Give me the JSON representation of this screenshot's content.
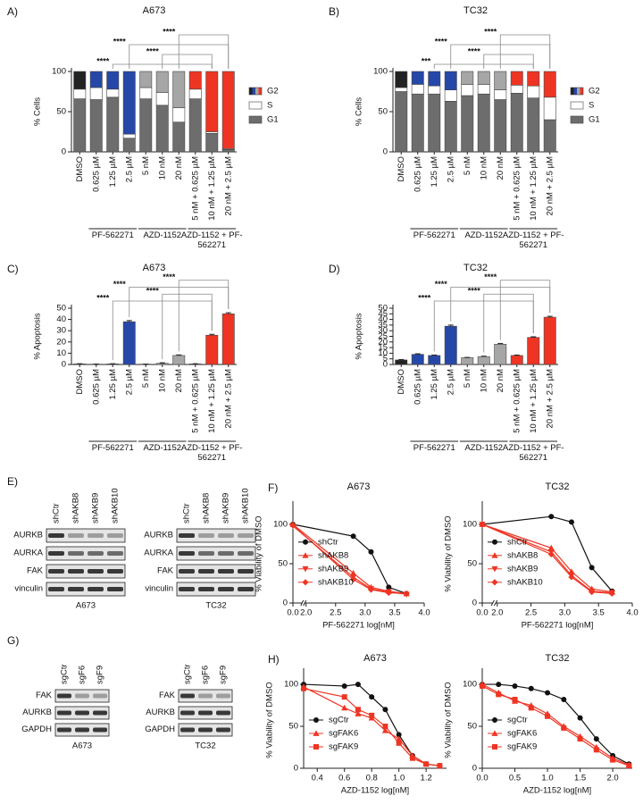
{
  "chart_data": [
    {
      "type": "bar",
      "label": "A)",
      "title": "A673",
      "ylabel": "% Cells",
      "stacked": true,
      "categories": [
        "DMSO",
        "0.625 µM",
        "1.25 µM",
        "2.5 µM",
        "5 nM",
        "10 nM",
        "20 nM",
        "5 nM + 0.625 µM",
        "10 nM + 1.25 µM",
        "20 nM + 2.5 µM"
      ],
      "series": [
        {
          "name": "G1",
          "color": "#6d6d6d",
          "values": [
            66,
            65,
            68,
            17,
            66,
            58,
            37,
            66,
            23,
            3
          ]
        },
        {
          "name": "S",
          "color": "#ffffff",
          "values": [
            12,
            15,
            10,
            5,
            14,
            16,
            18,
            12,
            2,
            1
          ]
        },
        {
          "name": "G2",
          "colors": [
            "#222222",
            "#2548a8",
            "#2548a8",
            "#2548a8",
            "#a6a6a6",
            "#a6a6a6",
            "#a6a6a6",
            "#ee3524",
            "#ee3524",
            "#ee3524"
          ],
          "values": [
            22,
            20,
            22,
            78,
            20,
            26,
            45,
            22,
            75,
            96
          ]
        }
      ],
      "ylim": [
        0,
        100
      ],
      "yticks": [
        0,
        50,
        100
      ],
      "legend": "right",
      "groups": [
        {
          "name": "PF-562271",
          "categories": [
            "0.625 µM",
            "1.25 µM",
            "2.5 µM"
          ]
        },
        {
          "name": "AZD-1152",
          "categories": [
            "5 nM",
            "10 nM",
            "20 nM"
          ]
        },
        {
          "name": "AZD-1152 + PF-562271",
          "categories": [
            "5 nM + 0.625 µM",
            "10 nM + 1.25 µM",
            "20 nM + 2.5 µM"
          ]
        }
      ],
      "annotations": [
        {
          "text": "****",
          "from": "1.25 µM",
          "to": "10 nM + 1.25 µM"
        },
        {
          "text": "****",
          "from": "10 nM",
          "to": "10 nM + 1.25 µM"
        },
        {
          "text": "****",
          "from": "2.5 µM",
          "to": "20 nM + 2.5 µM"
        },
        {
          "text": "****",
          "from": "20 nM",
          "to": "20 nM + 2.5 µM"
        }
      ]
    },
    {
      "type": "bar",
      "label": "B)",
      "title": "TC32",
      "ylabel": "% Cells",
      "stacked": true,
      "categories": [
        "DMSO",
        "0.625 µM",
        "1.25 µM",
        "2.5 µM",
        "5 nM",
        "10 nM",
        "20 nM",
        "5 nM + 0.625 µM",
        "10 nM + 1.25 µM",
        "20 nM + 2.5 µM"
      ],
      "series": [
        {
          "name": "G1",
          "color": "#6d6d6d",
          "values": [
            75,
            72,
            72,
            63,
            70,
            72,
            65,
            73,
            67,
            40
          ]
        },
        {
          "name": "S",
          "color": "#ffffff",
          "values": [
            5,
            12,
            10,
            14,
            14,
            12,
            12,
            10,
            15,
            28
          ]
        },
        {
          "name": "G2",
          "colors": [
            "#222222",
            "#2548a8",
            "#2548a8",
            "#2548a8",
            "#a6a6a6",
            "#a6a6a6",
            "#a6a6a6",
            "#ee3524",
            "#ee3524",
            "#ee3524"
          ],
          "values": [
            20,
            16,
            18,
            23,
            16,
            16,
            23,
            17,
            18,
            32
          ]
        }
      ],
      "ylim": [
        0,
        100
      ],
      "yticks": [
        0,
        50,
        100
      ],
      "legend": "right",
      "groups": [
        {
          "name": "PF-562271",
          "categories": [
            "0.625 µM",
            "1.25 µM",
            "2.5 µM"
          ]
        },
        {
          "name": "AZD-1152",
          "categories": [
            "5 nM",
            "10 nM",
            "20 nM"
          ]
        },
        {
          "name": "AZD-1152 + PF-562271",
          "categories": [
            "5 nM + 0.625 µM",
            "10 nM + 1.25 µM",
            "20 nM + 2.5 µM"
          ]
        }
      ],
      "annotations": [
        {
          "text": "***",
          "from": "1.25 µM",
          "to": "10 nM + 1.25 µM"
        },
        {
          "text": "****",
          "from": "10 nM",
          "to": "10 nM + 1.25 µM"
        },
        {
          "text": "****",
          "from": "2.5 µM",
          "to": "20 nM + 2.5 µM"
        },
        {
          "text": "****",
          "from": "20 nM",
          "to": "20 nM + 2.5 µM"
        }
      ]
    },
    {
      "type": "bar",
      "label": "C)",
      "title": "A673",
      "ylabel": "% Apoptosis",
      "categories": [
        "DMSO",
        "0.625 µM",
        "1.25 µM",
        "2.5 µM",
        "5 nM",
        "10 nM",
        "20 nM",
        "5 nM + 0.625 µM",
        "10 nM + 1.25 µM",
        "20 nM + 2.5 µM"
      ],
      "values": [
        0.5,
        0.3,
        0.5,
        38,
        0.3,
        1,
        8,
        0.5,
        26,
        45
      ],
      "errors": [
        0.2,
        0.1,
        0.2,
        1,
        0.1,
        0.5,
        0.5,
        0.2,
        0.8,
        1
      ],
      "colors": [
        "#222222",
        "#2548a8",
        "#2548a8",
        "#2548a8",
        "#a6a6a6",
        "#a6a6a6",
        "#a6a6a6",
        "#ee3524",
        "#ee3524",
        "#ee3524"
      ],
      "ylim": [
        0,
        50
      ],
      "yticks": [
        0,
        10,
        20,
        30,
        40,
        50
      ],
      "groups": [
        {
          "name": "PF-562271",
          "categories": [
            "0.625 µM",
            "1.25 µM",
            "2.5 µM"
          ]
        },
        {
          "name": "AZD-1152",
          "categories": [
            "5 nM",
            "10 nM",
            "20 nM"
          ]
        },
        {
          "name": "AZD-1152 + PF-562271",
          "categories": [
            "5 nM + 0.625 µM",
            "10 nM + 1.25 µM",
            "20 nM + 2.5 µM"
          ]
        }
      ],
      "annotations": [
        {
          "text": "****",
          "from": "1.25 µM",
          "to": "10 nM + 1.25 µM"
        },
        {
          "text": "****",
          "from": "10 nM",
          "to": "10 nM + 1.25 µM"
        },
        {
          "text": "****",
          "from": "2.5 µM",
          "to": "20 nM + 2.5 µM"
        },
        {
          "text": "****",
          "from": "20 nM",
          "to": "20 nM + 2.5 µM"
        }
      ]
    },
    {
      "type": "bar",
      "label": "D)",
      "title": "TC32",
      "ylabel": "% Apoptosis",
      "categories": [
        "DMSO",
        "0.625 µM",
        "1.25 µM",
        "2.5 µM",
        "5 nM",
        "10 nM",
        "20 nM",
        "5 nM + 0.625 µM",
        "10 nM + 1.25 µM",
        "20 nM + 2.5 µM"
      ],
      "values": [
        4,
        9,
        8,
        34,
        6,
        7,
        18,
        8,
        24,
        42
      ],
      "errors": [
        0.4,
        0.5,
        0.4,
        1,
        0.3,
        0.4,
        0.7,
        0.4,
        0.6,
        0.8
      ],
      "colors": [
        "#222222",
        "#2548a8",
        "#2548a8",
        "#2548a8",
        "#a6a6a6",
        "#a6a6a6",
        "#a6a6a6",
        "#ee3524",
        "#ee3524",
        "#ee3524"
      ],
      "ylim": [
        0,
        50
      ],
      "yticks": [
        0,
        5,
        10,
        15,
        20,
        25,
        30,
        35,
        40,
        45,
        50
      ],
      "groups": [
        {
          "name": "PF-562271",
          "categories": [
            "0.625 µM",
            "1.25 µM",
            "2.5 µM"
          ]
        },
        {
          "name": "AZD-1152",
          "categories": [
            "5 nM",
            "10 nM",
            "20 nM"
          ]
        },
        {
          "name": "AZD-1152 + PF-562271",
          "categories": [
            "5 nM + 0.625 µM",
            "10 nM + 1.25 µM",
            "20 nM + 2.5 µM"
          ]
        }
      ],
      "annotations": [
        {
          "text": "****",
          "from": "1.25 µM",
          "to": "10 nM + 1.25 µM"
        },
        {
          "text": "****",
          "from": "10 nM",
          "to": "10 nM + 1.25 µM"
        },
        {
          "text": "****",
          "from": "2.5 µM",
          "to": "20 nM + 2.5 µM"
        },
        {
          "text": "****",
          "from": "20 nM",
          "to": "20 nM + 2.5 µM"
        }
      ]
    },
    {
      "type": "line",
      "label": "F)",
      "title": "A673",
      "ylabel": "% Viability of DMSO",
      "xlabel": "PF-562271 log[nM]",
      "x": [
        0,
        2.8,
        3.1,
        3.4,
        3.7
      ],
      "xlim": [
        0,
        4
      ],
      "axis_break": true,
      "xticks": [
        {
          "value": 0,
          "label": "0.0"
        },
        {
          "value": 2,
          "label": "2.0"
        },
        2.5,
        {
          "value": 3,
          "label": "3.0"
        },
        3.5,
        {
          "value": 4,
          "label": "4.0"
        }
      ],
      "ylim": [
        0,
        125
      ],
      "yticks": [
        0,
        50,
        100
      ],
      "legend": "left",
      "series": [
        {
          "name": "shCtr",
          "color": "#111111",
          "marker": "circle",
          "values": [
            100,
            85,
            65,
            20,
            12
          ]
        },
        {
          "name": "shAKB8",
          "color": "#ee3524",
          "marker": "triangle",
          "values": [
            100,
            38,
            20,
            15,
            12
          ]
        },
        {
          "name": "shAKB9",
          "color": "#ee3524",
          "marker": "triangle-down",
          "values": [
            98,
            33,
            18,
            14,
            11
          ]
        },
        {
          "name": "shAKB10",
          "color": "#ee3524",
          "marker": "diamond",
          "values": [
            99,
            30,
            17,
            13,
            12
          ]
        }
      ]
    },
    {
      "type": "line",
      "title": "TC32",
      "ylabel": "% Viability of DMSO",
      "xlabel": "PF-562271 log[nM]",
      "x": [
        0,
        2.8,
        3.1,
        3.4,
        3.7
      ],
      "xlim": [
        0,
        4
      ],
      "axis_break": true,
      "xticks": [
        {
          "value": 0,
          "label": "0.0"
        },
        {
          "value": 2,
          "label": "2.0"
        },
        2.5,
        {
          "value": 3,
          "label": "3.0"
        },
        3.5,
        {
          "value": 4,
          "label": "4.0"
        }
      ],
      "ylim": [
        0,
        125
      ],
      "yticks": [
        0,
        50,
        100
      ],
      "legend": "left",
      "series": [
        {
          "name": "shCtr",
          "color": "#111111",
          "marker": "circle",
          "values": [
            100,
            110,
            103,
            45,
            15
          ]
        },
        {
          "name": "shAKB8",
          "color": "#ee3524",
          "marker": "triangle",
          "values": [
            100,
            70,
            40,
            18,
            14
          ]
        },
        {
          "name": "shAKB9",
          "color": "#ee3524",
          "marker": "triangle-down",
          "values": [
            100,
            65,
            35,
            15,
            13
          ]
        },
        {
          "name": "shAKB10",
          "color": "#ee3524",
          "marker": "diamond",
          "values": [
            100,
            62,
            33,
            14,
            12
          ]
        }
      ]
    },
    {
      "type": "line",
      "label": "H)",
      "title": "A673",
      "ylabel": "% Viability of DMSO",
      "xlabel": "AZD-1152 log[nM]",
      "x": [
        0.3,
        0.6,
        0.7,
        0.8,
        0.9,
        1.0,
        1.1,
        1.2,
        1.3
      ],
      "xlim": [
        0.3,
        1.35
      ],
      "xticks": [
        0.4,
        0.6,
        0.8,
        {
          "value": 1,
          "label": "1.0"
        },
        1.2
      ],
      "ylim": [
        0,
        115
      ],
      "yticks": [
        0,
        50,
        100
      ],
      "legend": "left",
      "series": [
        {
          "name": "sgCtr",
          "color": "#111111",
          "marker": "circle",
          "values": [
            100,
            98,
            100,
            85,
            70,
            40,
            15,
            5,
            3
          ]
        },
        {
          "name": "sgFAK6",
          "color": "#ee3524",
          "marker": "triangle",
          "values": [
            97,
            72,
            65,
            60,
            45,
            35,
            15,
            5,
            3
          ]
        },
        {
          "name": "sgFAK9",
          "color": "#ee3524",
          "marker": "square",
          "values": [
            95,
            85,
            70,
            63,
            50,
            30,
            12,
            5,
            3
          ]
        }
      ]
    },
    {
      "type": "line",
      "title": "TC32",
      "ylabel": "% Viability of DMSO",
      "xlabel": "AZD-1152 log[nM]",
      "x": [
        0,
        0.25,
        0.5,
        0.75,
        1.0,
        1.25,
        1.5,
        1.75,
        2.0,
        2.25
      ],
      "xlim": [
        0,
        2.3
      ],
      "xticks": [
        {
          "value": 0,
          "label": "0.0"
        },
        0.5,
        {
          "value": 1,
          "label": "1.0"
        },
        1.5,
        {
          "value": 2,
          "label": "2.0"
        }
      ],
      "ylim": [
        0,
        115
      ],
      "yticks": [
        0,
        50,
        100
      ],
      "legend": "left",
      "series": [
        {
          "name": "sgCtr",
          "color": "#111111",
          "marker": "circle",
          "values": [
            100,
            100,
            98,
            95,
            90,
            82,
            60,
            35,
            15,
            5
          ]
        },
        {
          "name": "sgFAK6",
          "color": "#ee3524",
          "marker": "triangle",
          "values": [
            100,
            90,
            80,
            75,
            65,
            50,
            38,
            25,
            12,
            4
          ]
        },
        {
          "name": "sgFAK9",
          "color": "#ee3524",
          "marker": "square",
          "values": [
            98,
            88,
            82,
            72,
            62,
            48,
            35,
            22,
            10,
            3
          ]
        }
      ]
    }
  ],
  "blots": [
    {
      "label": "E)",
      "panels": [
        {
          "lanes": [
            "shCtr",
            "shAKB8",
            "shAKB9",
            "shAKB10"
          ],
          "rows": [
            "AURKB",
            "AURKA",
            "FAK",
            "vinculin"
          ],
          "caption": "A673"
        },
        {
          "lanes": [
            "shCtr",
            "shAKB8",
            "shAKB9",
            "shAKB10"
          ],
          "rows": [
            "AURKB",
            "AURKA",
            "FAK",
            "vinculin"
          ],
          "caption": "TC32"
        }
      ]
    },
    {
      "label": "G)",
      "panels": [
        {
          "lanes": [
            "sgCtr",
            "sgF6",
            "sgF9"
          ],
          "rows": [
            "FAK",
            "AURKB",
            "GAPDH"
          ],
          "caption": "A673"
        },
        {
          "lanes": [
            "sgCtr",
            "sgF6",
            "sgF9"
          ],
          "rows": [
            "FAK",
            "AURKB",
            "GAPDH"
          ],
          "caption": "TC32"
        }
      ]
    }
  ]
}
